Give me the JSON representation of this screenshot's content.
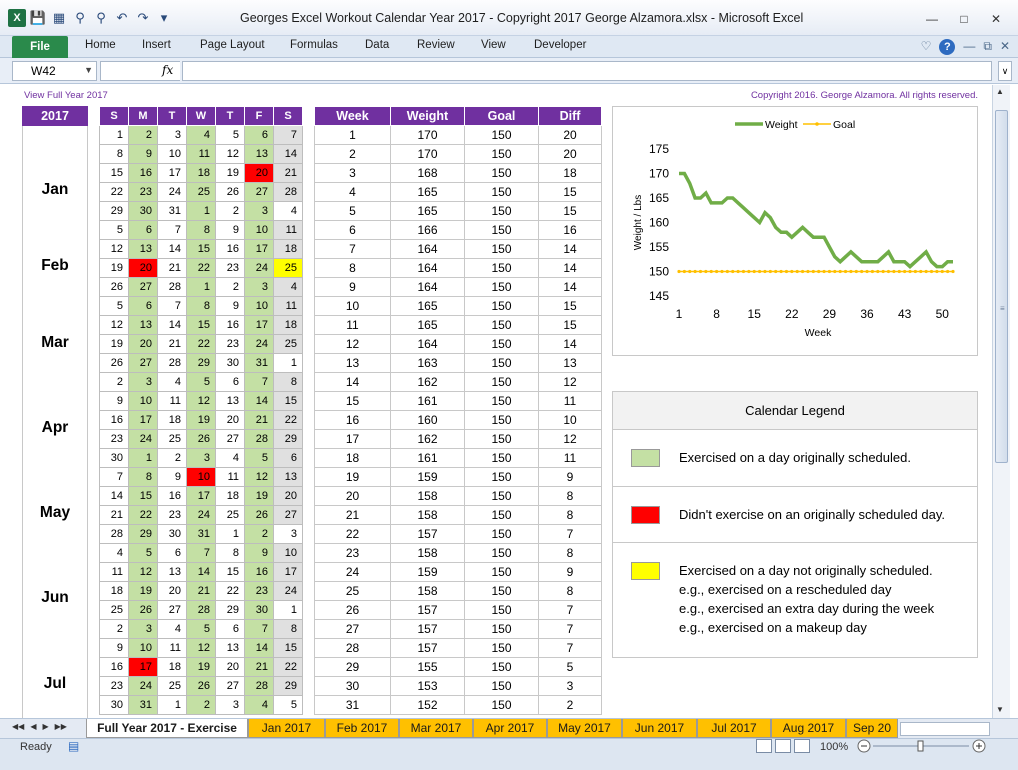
{
  "window": {
    "title": "Georges Excel Workout Calendar Year 2017  -  Copyright 2017 George Alzamora.xlsx  -  Microsoft Excel"
  },
  "ribbon": {
    "file": "File",
    "tabs": [
      "Home",
      "Insert",
      "Page Layout",
      "Formulas",
      "Data",
      "Review",
      "View",
      "Developer"
    ]
  },
  "formula_bar": {
    "name_box": "W42",
    "fx": "fx",
    "value": ""
  },
  "sheet": {
    "view_link": "View Full Year 2017",
    "copyright": "Copyright 2016.  George Alzamora.  All rights reserved.",
    "year": "2017",
    "months": [
      "Jan",
      "Feb",
      "Mar",
      "Apr",
      "May",
      "Jun",
      "Jul"
    ],
    "day_headers": [
      "S",
      "M",
      "T",
      "W",
      "T",
      "F",
      "S"
    ],
    "calendar_weeks": [
      {
        "days": [
          1,
          2,
          3,
          4,
          5,
          6,
          7
        ],
        "status": [
          "",
          "g",
          "",
          "g",
          "",
          "g",
          "s"
        ]
      },
      {
        "days": [
          8,
          9,
          10,
          11,
          12,
          13,
          14
        ],
        "status": [
          "",
          "g",
          "",
          "g",
          "",
          "g",
          "s"
        ]
      },
      {
        "days": [
          15,
          16,
          17,
          18,
          19,
          20,
          21
        ],
        "status": [
          "",
          "g",
          "",
          "g",
          "",
          "r",
          "s"
        ]
      },
      {
        "days": [
          22,
          23,
          24,
          25,
          26,
          27,
          28
        ],
        "status": [
          "",
          "g",
          "",
          "g",
          "",
          "g",
          "s"
        ]
      },
      {
        "days": [
          29,
          30,
          31,
          1,
          2,
          3,
          4
        ],
        "status": [
          "",
          "g",
          "",
          "g",
          "",
          "g",
          ""
        ]
      },
      {
        "days": [
          5,
          6,
          7,
          8,
          9,
          10,
          11
        ],
        "status": [
          "",
          "g",
          "",
          "g",
          "",
          "g",
          "s"
        ]
      },
      {
        "days": [
          12,
          13,
          14,
          15,
          16,
          17,
          18
        ],
        "status": [
          "",
          "g",
          "",
          "g",
          "",
          "g",
          "s"
        ]
      },
      {
        "days": [
          19,
          20,
          21,
          22,
          23,
          24,
          25
        ],
        "status": [
          "",
          "r",
          "",
          "g",
          "",
          "g",
          "y"
        ]
      },
      {
        "days": [
          26,
          27,
          28,
          1,
          2,
          3,
          4
        ],
        "status": [
          "",
          "g",
          "",
          "g",
          "",
          "g",
          "s"
        ]
      },
      {
        "days": [
          5,
          6,
          7,
          8,
          9,
          10,
          11
        ],
        "status": [
          "",
          "g",
          "",
          "g",
          "",
          "g",
          "s"
        ]
      },
      {
        "days": [
          12,
          13,
          14,
          15,
          16,
          17,
          18
        ],
        "status": [
          "",
          "g",
          "",
          "g",
          "",
          "g",
          "s"
        ]
      },
      {
        "days": [
          19,
          20,
          21,
          22,
          23,
          24,
          25
        ],
        "status": [
          "",
          "g",
          "",
          "g",
          "",
          "g",
          "s"
        ]
      },
      {
        "days": [
          26,
          27,
          28,
          29,
          30,
          31,
          1
        ],
        "status": [
          "",
          "g",
          "",
          "g",
          "",
          "g",
          ""
        ]
      },
      {
        "days": [
          2,
          3,
          4,
          5,
          6,
          7,
          8
        ],
        "status": [
          "",
          "g",
          "",
          "g",
          "",
          "g",
          "s"
        ]
      },
      {
        "days": [
          9,
          10,
          11,
          12,
          13,
          14,
          15
        ],
        "status": [
          "",
          "g",
          "",
          "g",
          "",
          "g",
          "s"
        ]
      },
      {
        "days": [
          16,
          17,
          18,
          19,
          20,
          21,
          22
        ],
        "status": [
          "",
          "g",
          "",
          "g",
          "",
          "g",
          "s"
        ]
      },
      {
        "days": [
          23,
          24,
          25,
          26,
          27,
          28,
          29
        ],
        "status": [
          "",
          "g",
          "",
          "g",
          "",
          "g",
          "s"
        ]
      },
      {
        "days": [
          30,
          1,
          2,
          3,
          4,
          5,
          6
        ],
        "status": [
          "",
          "g",
          "",
          "g",
          "",
          "g",
          "s"
        ]
      },
      {
        "days": [
          7,
          8,
          9,
          10,
          11,
          12,
          13
        ],
        "status": [
          "",
          "g",
          "",
          "r",
          "",
          "g",
          "s"
        ]
      },
      {
        "days": [
          14,
          15,
          16,
          17,
          18,
          19,
          20
        ],
        "status": [
          "",
          "g",
          "",
          "g",
          "",
          "g",
          "s"
        ]
      },
      {
        "days": [
          21,
          22,
          23,
          24,
          25,
          26,
          27
        ],
        "status": [
          "",
          "g",
          "",
          "g",
          "",
          "g",
          "s"
        ]
      },
      {
        "days": [
          28,
          29,
          30,
          31,
          1,
          2,
          3
        ],
        "status": [
          "",
          "g",
          "",
          "g",
          "",
          "g",
          ""
        ]
      },
      {
        "days": [
          4,
          5,
          6,
          7,
          8,
          9,
          10
        ],
        "status": [
          "",
          "g",
          "",
          "g",
          "",
          "g",
          "s"
        ]
      },
      {
        "days": [
          11,
          12,
          13,
          14,
          15,
          16,
          17
        ],
        "status": [
          "",
          "g",
          "",
          "g",
          "",
          "g",
          "s"
        ]
      },
      {
        "days": [
          18,
          19,
          20,
          21,
          22,
          23,
          24
        ],
        "status": [
          "",
          "g",
          "",
          "g",
          "",
          "g",
          "s"
        ]
      },
      {
        "days": [
          25,
          26,
          27,
          28,
          29,
          30,
          1
        ],
        "status": [
          "",
          "g",
          "",
          "g",
          "",
          "g",
          ""
        ]
      },
      {
        "days": [
          2,
          3,
          4,
          5,
          6,
          7,
          8
        ],
        "status": [
          "",
          "g",
          "",
          "g",
          "",
          "g",
          "s"
        ]
      },
      {
        "days": [
          9,
          10,
          11,
          12,
          13,
          14,
          15
        ],
        "status": [
          "",
          "g",
          "",
          "g",
          "",
          "g",
          "s"
        ]
      },
      {
        "days": [
          16,
          17,
          18,
          19,
          20,
          21,
          22
        ],
        "status": [
          "",
          "r",
          "",
          "g",
          "",
          "g",
          "s"
        ]
      },
      {
        "days": [
          23,
          24,
          25,
          26,
          27,
          28,
          29
        ],
        "status": [
          "",
          "g",
          "",
          "g",
          "",
          "g",
          "s"
        ]
      },
      {
        "days": [
          30,
          31,
          1,
          2,
          3,
          4,
          5
        ],
        "status": [
          "",
          "g",
          "",
          "g",
          "",
          "g",
          ""
        ]
      }
    ],
    "weight_table": {
      "headers": [
        "Week",
        "Weight",
        "Goal",
        "Diff"
      ],
      "rows": [
        [
          1,
          170,
          150,
          20
        ],
        [
          2,
          170,
          150,
          20
        ],
        [
          3,
          168,
          150,
          18
        ],
        [
          4,
          165,
          150,
          15
        ],
        [
          5,
          165,
          150,
          15
        ],
        [
          6,
          166,
          150,
          16
        ],
        [
          7,
          164,
          150,
          14
        ],
        [
          8,
          164,
          150,
          14
        ],
        [
          9,
          164,
          150,
          14
        ],
        [
          10,
          165,
          150,
          15
        ],
        [
          11,
          165,
          150,
          15
        ],
        [
          12,
          164,
          150,
          14
        ],
        [
          13,
          163,
          150,
          13
        ],
        [
          14,
          162,
          150,
          12
        ],
        [
          15,
          161,
          150,
          11
        ],
        [
          16,
          160,
          150,
          10
        ],
        [
          17,
          162,
          150,
          12
        ],
        [
          18,
          161,
          150,
          11
        ],
        [
          19,
          159,
          150,
          9
        ],
        [
          20,
          158,
          150,
          8
        ],
        [
          21,
          158,
          150,
          8
        ],
        [
          22,
          157,
          150,
          7
        ],
        [
          23,
          158,
          150,
          8
        ],
        [
          24,
          159,
          150,
          9
        ],
        [
          25,
          158,
          150,
          8
        ],
        [
          26,
          157,
          150,
          7
        ],
        [
          27,
          157,
          150,
          7
        ],
        [
          28,
          157,
          150,
          7
        ],
        [
          29,
          155,
          150,
          5
        ],
        [
          30,
          153,
          150,
          3
        ],
        [
          31,
          152,
          150,
          2
        ]
      ]
    },
    "legend": {
      "title": "Calendar Legend",
      "items": [
        {
          "color": "#c4e0a4",
          "lines": [
            "Exercised on a day originally scheduled."
          ]
        },
        {
          "color": "#ff0000",
          "lines": [
            "Didn't exercise on an originally scheduled day."
          ]
        },
        {
          "color": "#ffff00",
          "lines": [
            "Exercised on a day not originally scheduled.",
            "e.g., exercised on a rescheduled day",
            "e.g., exercised an extra day during the week",
            "e.g., exercised on a makeup day"
          ]
        }
      ]
    }
  },
  "chart_data": {
    "type": "line",
    "title": "",
    "xlabel": "Week",
    "ylabel": "Weight / Lbs",
    "xlim": [
      1,
      52
    ],
    "ylim": [
      145,
      175
    ],
    "x_ticks": [
      1,
      8,
      15,
      22,
      29,
      36,
      43,
      50
    ],
    "y_ticks": [
      145,
      150,
      155,
      160,
      165,
      170,
      175
    ],
    "legend_position": "top",
    "series": [
      {
        "name": "Weight",
        "color": "#70ad47",
        "x": [
          1,
          2,
          3,
          4,
          5,
          6,
          7,
          8,
          9,
          10,
          11,
          12,
          13,
          14,
          15,
          16,
          17,
          18,
          19,
          20,
          21,
          22,
          23,
          24,
          25,
          26,
          27,
          28,
          29,
          30,
          31,
          32,
          33,
          34,
          35,
          36,
          37,
          38,
          39,
          40,
          41,
          42,
          43,
          44,
          45,
          46,
          47,
          48,
          49,
          50,
          51,
          52
        ],
        "values": [
          170,
          170,
          168,
          165,
          165,
          166,
          164,
          164,
          164,
          165,
          165,
          164,
          163,
          162,
          161,
          160,
          162,
          161,
          159,
          158,
          158,
          157,
          158,
          159,
          158,
          157,
          157,
          157,
          155,
          153,
          152,
          153,
          154,
          153,
          152,
          152,
          152,
          152,
          153,
          154,
          152,
          152,
          152,
          151,
          152,
          153,
          154,
          152,
          151,
          151,
          152,
          152
        ]
      },
      {
        "name": "Goal",
        "color": "#ffc000",
        "x": [
          1,
          2,
          3,
          4,
          5,
          6,
          7,
          8,
          9,
          10,
          11,
          12,
          13,
          14,
          15,
          16,
          17,
          18,
          19,
          20,
          21,
          22,
          23,
          24,
          25,
          26,
          27,
          28,
          29,
          30,
          31,
          32,
          33,
          34,
          35,
          36,
          37,
          38,
          39,
          40,
          41,
          42,
          43,
          44,
          45,
          46,
          47,
          48,
          49,
          50,
          51,
          52
        ],
        "values": [
          150,
          150,
          150,
          150,
          150,
          150,
          150,
          150,
          150,
          150,
          150,
          150,
          150,
          150,
          150,
          150,
          150,
          150,
          150,
          150,
          150,
          150,
          150,
          150,
          150,
          150,
          150,
          150,
          150,
          150,
          150,
          150,
          150,
          150,
          150,
          150,
          150,
          150,
          150,
          150,
          150,
          150,
          150,
          150,
          150,
          150,
          150,
          150,
          150,
          150,
          150,
          150
        ]
      }
    ]
  },
  "sheet_tabs": {
    "active": "Full Year 2017 - Exercise",
    "tabs": [
      "Jan 2017",
      "Feb 2017",
      "Mar 2017",
      "Apr 2017",
      "May 2017",
      "Jun 2017",
      "Jul 2017",
      "Aug 2017",
      "Sep 20"
    ]
  },
  "status": {
    "ready": "Ready",
    "zoom": "100%"
  }
}
